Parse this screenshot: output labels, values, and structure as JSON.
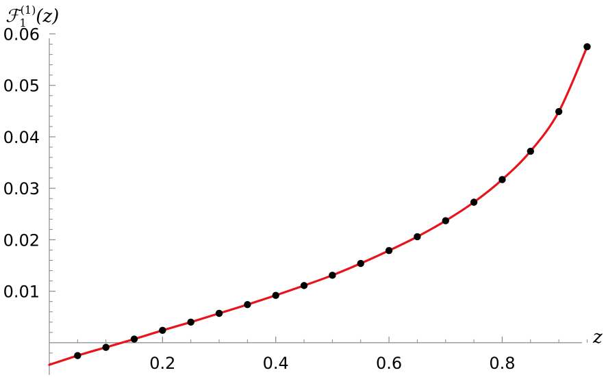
{
  "chart_data": {
    "type": "line",
    "title": "",
    "xlabel": "z",
    "ylabel": {
      "base": "ℱ",
      "superscript": "(1)",
      "subscript": "1",
      "argument": "(z)"
    },
    "xlim": [
      0,
      0.97
    ],
    "ylim": [
      -0.006,
      0.061
    ],
    "x_ticks": [
      0.2,
      0.4,
      0.6,
      0.8
    ],
    "x_tick_labels": [
      "0.2",
      "0.4",
      "0.6",
      "0.8"
    ],
    "y_ticks": [
      0.01,
      0.02,
      0.03,
      0.04,
      0.05,
      0.06
    ],
    "y_tick_labels": [
      "0.01",
      "0.02",
      "0.03",
      "0.04",
      "0.05",
      "0.06"
    ],
    "grid": false,
    "colors": {
      "curve": "#e8141b",
      "points": "#000000",
      "axes": "#888888"
    },
    "series": [
      {
        "kind": "line",
        "x": [
          0,
          0.05,
          0.1,
          0.15,
          0.2,
          0.25,
          0.3,
          0.35,
          0.4,
          0.45,
          0.5,
          0.55,
          0.6,
          0.65,
          0.7,
          0.75,
          0.8,
          0.85,
          0.9,
          0.95
        ],
        "y": [
          -0.0043,
          -0.0025,
          -0.0009,
          0.0007,
          0.0024,
          0.004,
          0.0057,
          0.0074,
          0.0092,
          0.0111,
          0.0131,
          0.0154,
          0.0179,
          0.0206,
          0.0237,
          0.0273,
          0.0317,
          0.0372,
          0.0449,
          0.0575
        ]
      },
      {
        "kind": "scatter",
        "x": [
          0.05,
          0.1,
          0.15,
          0.2,
          0.25,
          0.3,
          0.35,
          0.4,
          0.45,
          0.5,
          0.55,
          0.6,
          0.65,
          0.7,
          0.75,
          0.8,
          0.85,
          0.9,
          0.95
        ],
        "y": [
          -0.0025,
          -0.0009,
          0.0007,
          0.0024,
          0.004,
          0.0057,
          0.0074,
          0.0092,
          0.0111,
          0.0131,
          0.0154,
          0.0179,
          0.0206,
          0.0237,
          0.0273,
          0.0317,
          0.0372,
          0.0449,
          0.0575
        ]
      }
    ]
  }
}
